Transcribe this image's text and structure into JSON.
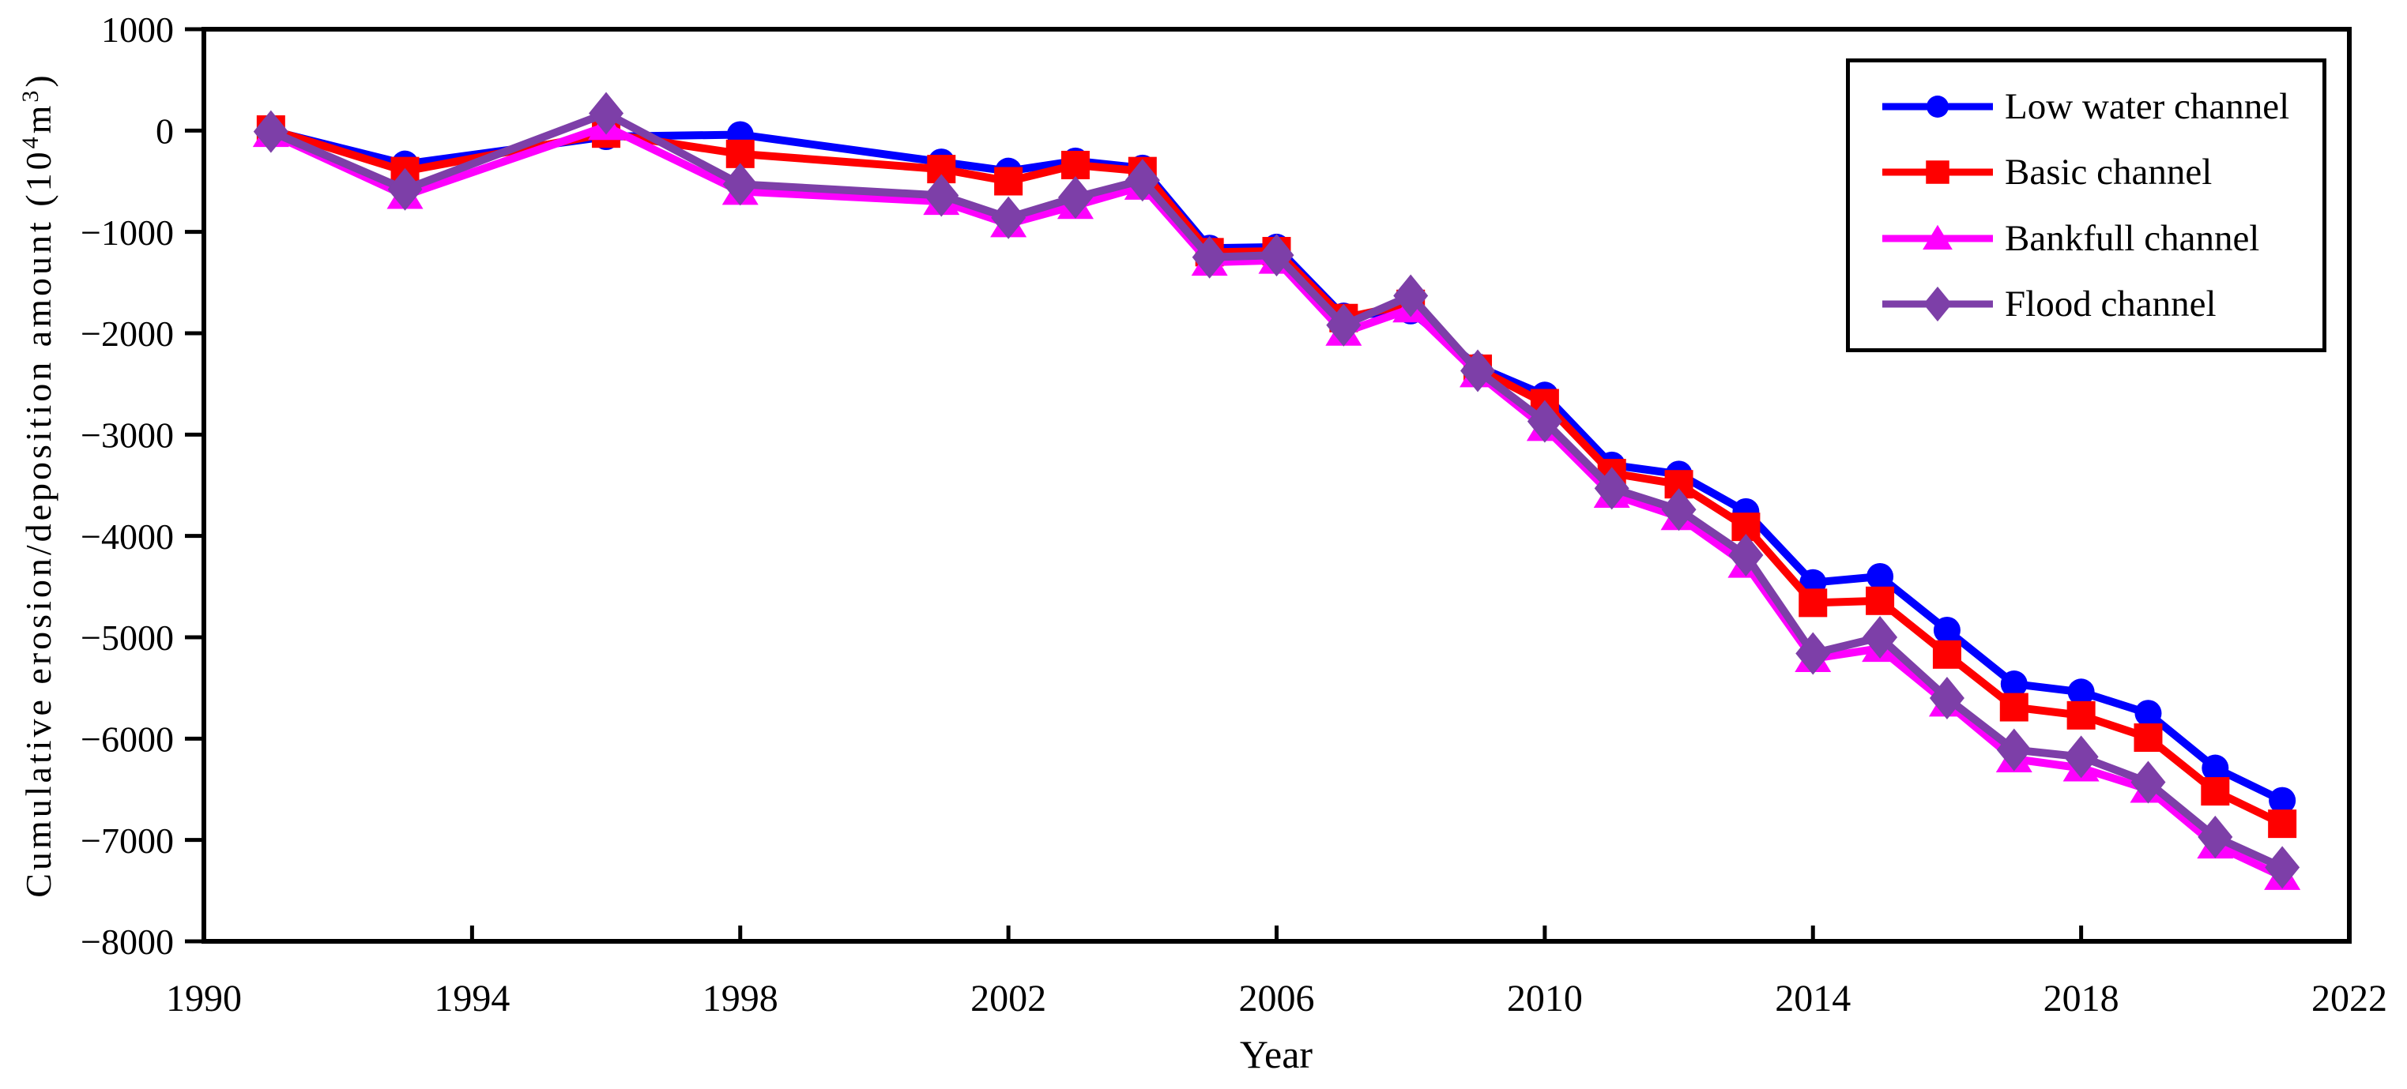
{
  "axes": {
    "xlabel": "Year",
    "ylabel": {
      "pre": "Cumulative erosion/deposition amount  (10",
      "sup1": "4",
      "mid": "m",
      "sup2": "3",
      "post": ")"
    }
  },
  "chart_data": {
    "type": "line",
    "title": "",
    "xlabel": "Year",
    "ylabel": "Cumulative erosion/deposition amount (10^4 m^3)",
    "xlim": [
      1990,
      2022
    ],
    "ylim": [
      -8000,
      1000
    ],
    "grid": false,
    "legend_position": "top-right",
    "xticks": [
      1990,
      1994,
      1998,
      2002,
      2006,
      2010,
      2014,
      2018,
      2022
    ],
    "xtick_labels": [
      "1990",
      "1994",
      "1998",
      "2002",
      "2006",
      "2010",
      "2014",
      "2018",
      "2022"
    ],
    "yticks": [
      1000,
      0,
      -1000,
      -2000,
      -3000,
      -4000,
      -5000,
      -6000,
      -7000,
      -8000
    ],
    "ytick_labels": [
      "1000",
      "0",
      "−1000",
      "−2000",
      "−3000",
      "−4000",
      "−5000",
      "−6000",
      "−7000",
      "−8000"
    ],
    "x": [
      1991,
      1993,
      1996,
      1998,
      2001,
      2002,
      2003,
      2004,
      2005,
      2006,
      2007,
      2008,
      2009,
      2010,
      2011,
      2012,
      2013,
      2014,
      2015,
      2016,
      2017,
      2018,
      2019,
      2020,
      2021
    ],
    "series": [
      {
        "name": "Low water channel",
        "color": "#0000FE",
        "marker": "circle",
        "values": [
          0,
          -330,
          -60,
          -40,
          -310,
          -400,
          -300,
          -370,
          -1160,
          -1150,
          -1830,
          -1780,
          -2330,
          -2610,
          -3300,
          -3390,
          -3760,
          -4460,
          -4400,
          -4930,
          -5460,
          -5540,
          -5750,
          -6290,
          -6610
        ]
      },
      {
        "name": "Basic channel",
        "color": "#FE0000",
        "marker": "square",
        "values": [
          10,
          -400,
          -30,
          -230,
          -380,
          -500,
          -340,
          -400,
          -1200,
          -1190,
          -1850,
          -1710,
          -2350,
          -2690,
          -3380,
          -3490,
          -3910,
          -4660,
          -4640,
          -5170,
          -5690,
          -5770,
          -5990,
          -6520,
          -6840
        ]
      },
      {
        "name": "Bankfull channel",
        "color": "#FE00FE",
        "marker": "triangle",
        "values": [
          -30,
          -640,
          40,
          -600,
          -700,
          -920,
          -740,
          -550,
          -1300,
          -1280,
          -1990,
          -1760,
          -2400,
          -2930,
          -3590,
          -3810,
          -4280,
          -5210,
          -5110,
          -5650,
          -6200,
          -6290,
          -6500,
          -7050,
          -7360
        ]
      },
      {
        "name": "Flood channel",
        "color": "#7D3FA8",
        "marker": "diamond",
        "values": [
          -10,
          -580,
          170,
          -530,
          -640,
          -860,
          -660,
          -490,
          -1250,
          -1230,
          -1920,
          -1630,
          -2370,
          -2870,
          -3530,
          -3740,
          -4190,
          -5160,
          -5000,
          -5600,
          -6110,
          -6180,
          -6430,
          -6970,
          -7270
        ]
      }
    ]
  }
}
